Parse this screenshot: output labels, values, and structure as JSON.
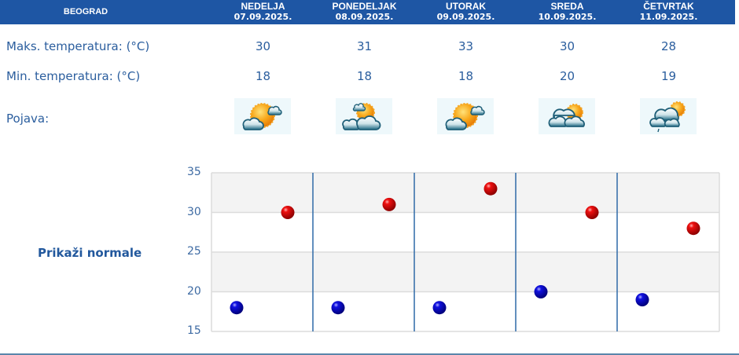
{
  "header": {
    "city": "BEOGRAD",
    "days": [
      {
        "name": "NEDELJA",
        "date": "07.09.2025."
      },
      {
        "name": "PONEDELJAK",
        "date": "08.09.2025."
      },
      {
        "name": "UTORAK",
        "date": "09.09.2025."
      },
      {
        "name": "SREDA",
        "date": "10.09.2025."
      },
      {
        "name": "ČETVRTAK",
        "date": "11.09.2025."
      }
    ]
  },
  "rows": {
    "max_label": "Maks. temperatura: (°C)",
    "min_label": "Min. temperatura: (°C)",
    "phenomenon_label": "Pojava:",
    "max": [
      "30",
      "31",
      "33",
      "30",
      "28"
    ],
    "min": [
      "18",
      "18",
      "18",
      "20",
      "19"
    ],
    "icons": [
      "sun-mostly-clear-icon",
      "partly-cloudy-icon",
      "sun-mostly-clear-icon",
      "mostly-cloudy-icon",
      "cloudy-light-rain-icon"
    ]
  },
  "normals_link": "Prikaži normale",
  "colors": {
    "header_bg": "#1e56a4",
    "text": "#2b5e9e",
    "max_dot": "#d40000",
    "min_dot": "#0000c8",
    "separator": "#2f6aa8",
    "band": "#f3f3f3"
  },
  "chart_data": {
    "type": "scatter",
    "title": "",
    "xlabel": "",
    "ylabel": "",
    "categories": [
      "NEDELJA 07.09.2025.",
      "PONEDELJAK 08.09.2025.",
      "UTORAK 09.09.2025.",
      "SREDA 10.09.2025.",
      "ČETVRTAK 11.09.2025."
    ],
    "series": [
      {
        "name": "Maks. temperatura",
        "color": "red",
        "values": [
          30,
          31,
          33,
          30,
          28
        ]
      },
      {
        "name": "Min. temperatura",
        "color": "blue",
        "values": [
          18,
          18,
          18,
          20,
          19
        ]
      }
    ],
    "yticks": [
      "35",
      "30",
      "25",
      "20",
      "15"
    ],
    "ylim": [
      15,
      35
    ],
    "grid": true,
    "legend": "none"
  }
}
